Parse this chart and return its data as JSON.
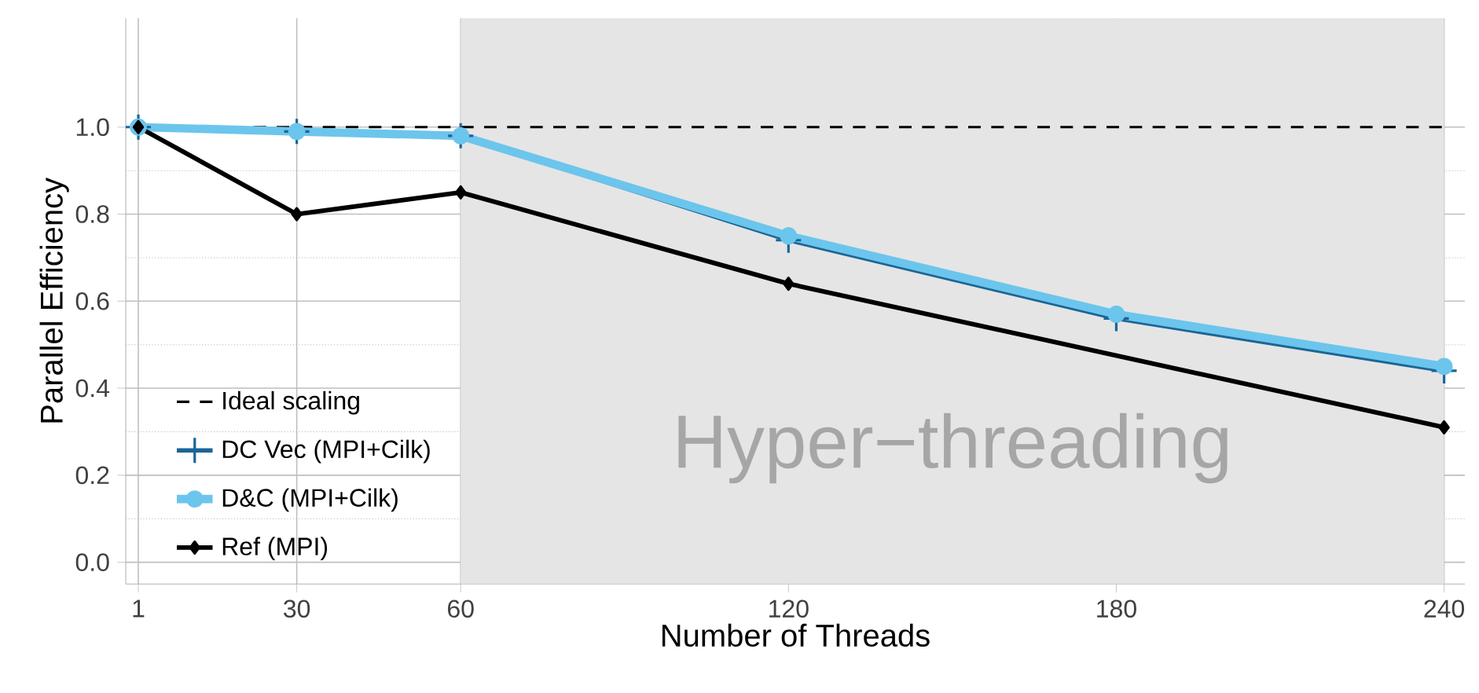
{
  "chart_data": {
    "type": "line",
    "xlabel": "Number of Threads",
    "ylabel": "Parallel Efficiency",
    "xlim": [
      -1.3,
      243.8
    ],
    "ylim": [
      -0.05,
      1.25
    ],
    "xticks": [
      1,
      30,
      60,
      120,
      180,
      240
    ],
    "yticks": [
      {
        "value": 0,
        "label": "0.0"
      },
      {
        "value": 0.2,
        "label": "0.2"
      },
      {
        "value": 0.4,
        "label": "0.4"
      },
      {
        "value": 0.6,
        "label": "0.6"
      },
      {
        "value": 0.8,
        "label": "0.8"
      },
      {
        "value": 1,
        "label": "1.0"
      }
    ],
    "grid": true,
    "legend": "bottom left",
    "bands": [
      {
        "axis": "x",
        "from": 60,
        "to": 240,
        "label": "Hyper−threading",
        "color": "#e5e5e5"
      }
    ],
    "series": [
      {
        "name": "Ideal scaling",
        "color": "#000000",
        "x": [
          1,
          240
        ],
        "values": [
          1.0,
          1.0
        ],
        "line_style": "dashed"
      },
      {
        "name": "DC Vec (MPI+Cilk)",
        "color": "#1b6597",
        "x": [
          1,
          30,
          60,
          120,
          180,
          240
        ],
        "values": [
          1.0,
          0.99,
          0.98,
          0.74,
          0.56,
          0.44
        ],
        "line_style": "solid",
        "marker": "cross"
      },
      {
        "name": "D&C (MPI+Cilk)",
        "color": "#6cc5ec",
        "x": [
          1,
          30,
          60,
          120,
          180,
          240
        ],
        "values": [
          1.0,
          0.99,
          0.98,
          0.75,
          0.57,
          0.45
        ],
        "line_style": "solid",
        "marker": "circle"
      },
      {
        "name": "Ref (MPI)",
        "color": "#000000",
        "x": [
          1,
          30,
          60,
          120,
          240
        ],
        "values": [
          1.0,
          0.8,
          0.85,
          0.64,
          0.31
        ],
        "line_style": "solid",
        "marker": "diamond"
      }
    ]
  }
}
